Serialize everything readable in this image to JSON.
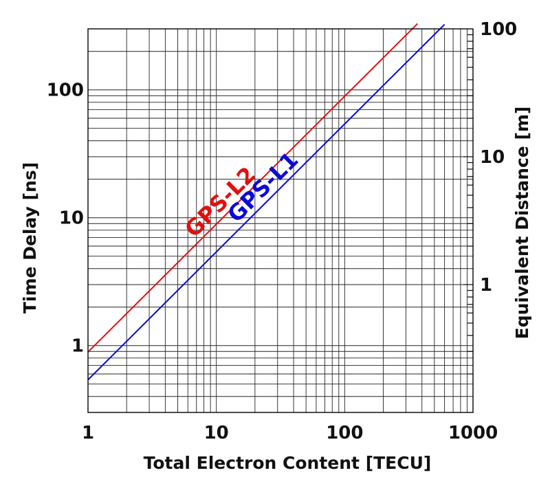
{
  "chart_data": {
    "type": "line",
    "x_scale": "log",
    "y_scale": "log",
    "xlim": [
      1,
      1000
    ],
    "ylim": [
      0.3,
      300
    ],
    "y2lim": [
      0.1,
      100
    ],
    "grid": true,
    "xlabel": "Total Electron Content  [TECU]",
    "ylabel": "Time Delay  [ns]",
    "y2label": "Equivalent Distance [m]",
    "x_ticks": [
      {
        "value": 1,
        "label": "1"
      },
      {
        "value": 10,
        "label": "10"
      },
      {
        "value": 100,
        "label": "100"
      },
      {
        "value": 1000,
        "label": "1000"
      }
    ],
    "y_ticks": [
      {
        "value": 1,
        "label": "1"
      },
      {
        "value": 10,
        "label": "10"
      },
      {
        "value": 100,
        "label": "100"
      }
    ],
    "y2_ticks": [
      {
        "value": 1,
        "label": "1"
      },
      {
        "value": 10,
        "label": "10"
      },
      {
        "value": 100,
        "label": "100"
      }
    ],
    "series": [
      {
        "name": "GPS-L2",
        "color": "#e01010",
        "x": [
          1,
          370
        ],
        "y": [
          0.89,
          330
        ]
      },
      {
        "name": "GPS-L1",
        "color": "#0a0ad8",
        "x": [
          1,
          600
        ],
        "y": [
          0.54,
          325
        ]
      }
    ]
  }
}
